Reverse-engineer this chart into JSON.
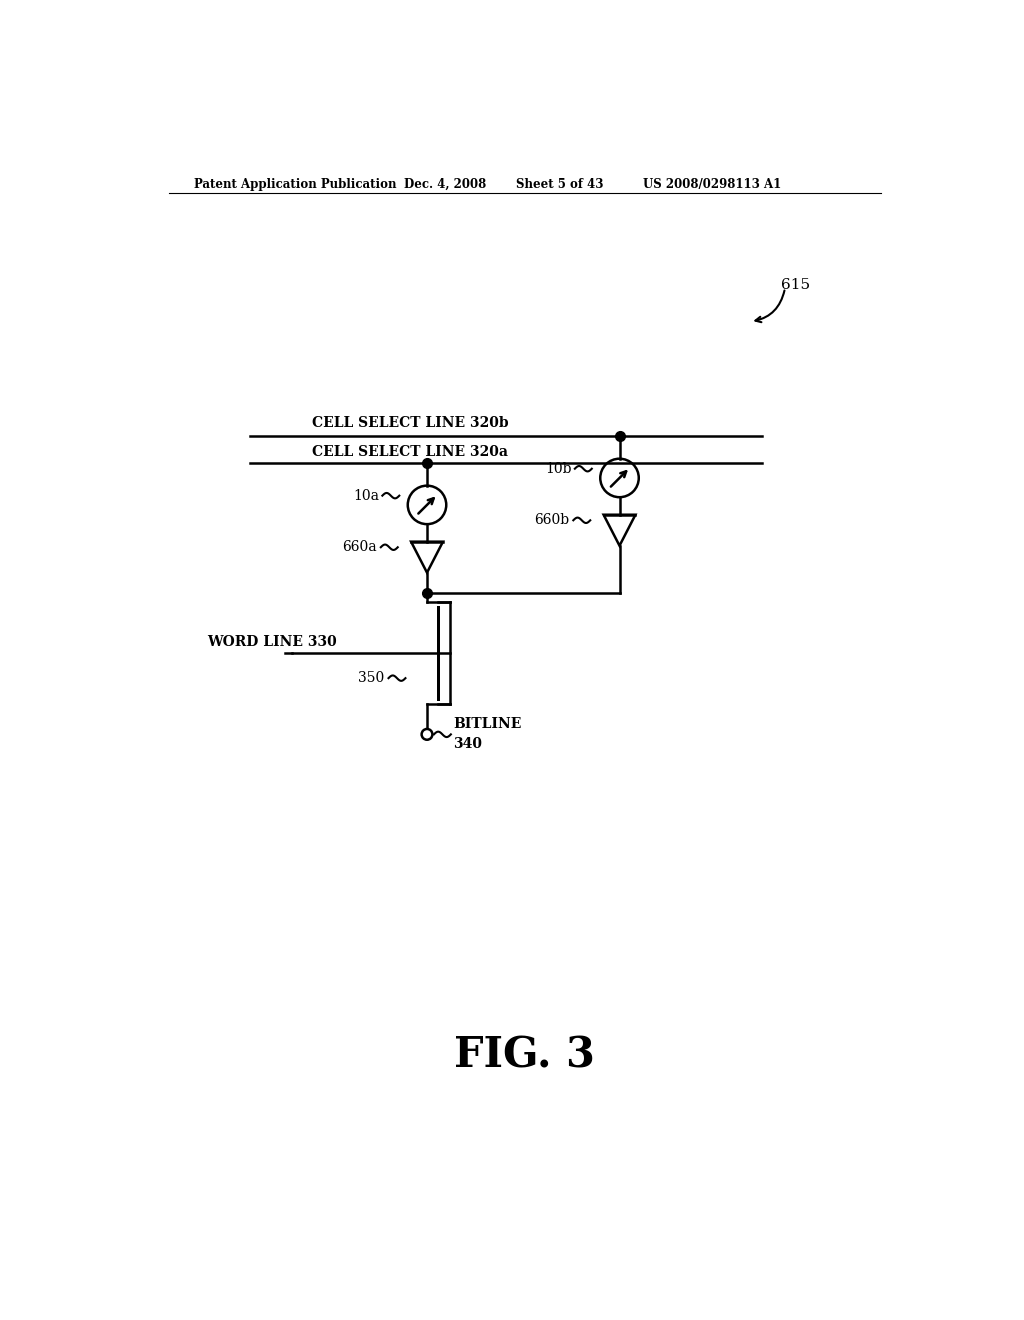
{
  "bg_color": "#ffffff",
  "header_text": "Patent Application Publication",
  "header_date": "Dec. 4, 2008",
  "header_sheet": "Sheet 5 of 43",
  "header_patent": "US 2008/0298113 A1",
  "fig_label": "FIG. 3",
  "label_615": "615",
  "label_10a": "10a",
  "label_10b": "10b",
  "label_660a": "660a",
  "label_660b": "660b",
  "label_wordline": "WORD LINE 330",
  "label_350": "350",
  "label_bitline": "BITLINE",
  "label_bitline2": "340",
  "label_csl320b": "CELL SELECT LINE 320b",
  "label_csl320a": "CELL SELECT LINE 320a"
}
